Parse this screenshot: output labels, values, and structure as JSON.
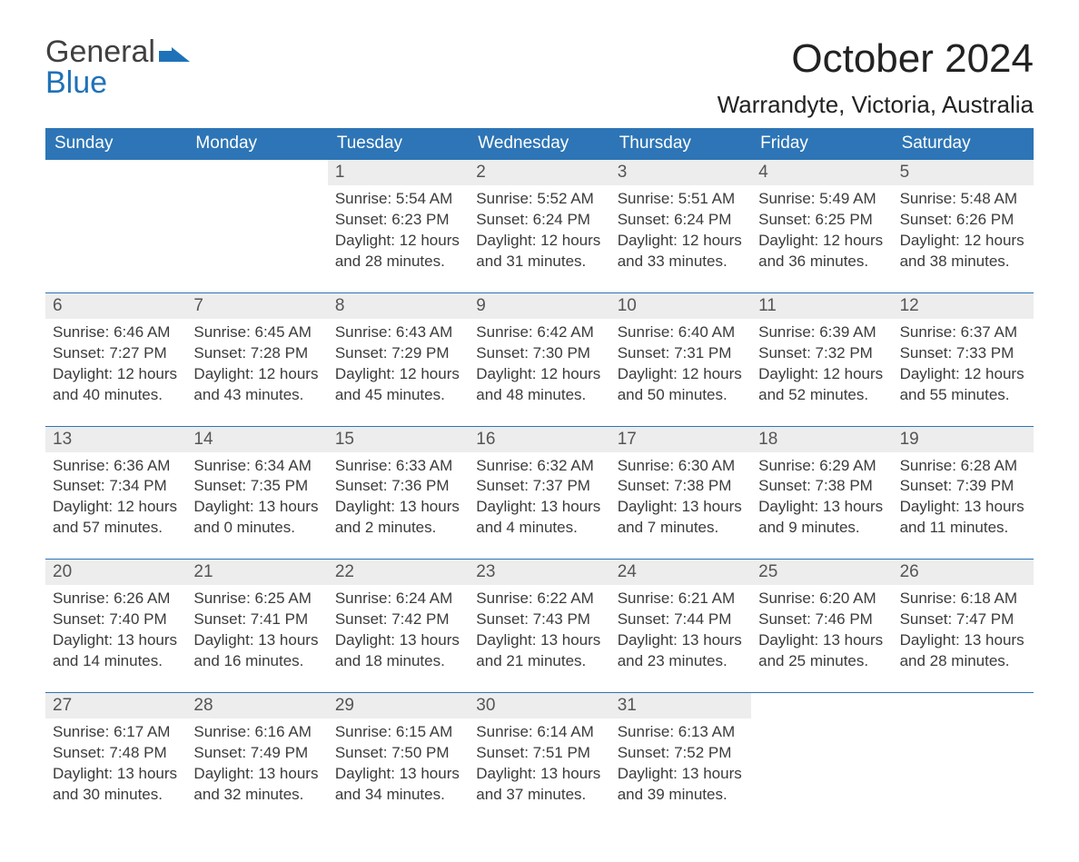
{
  "logo": {
    "word1": "General",
    "word2": "Blue"
  },
  "title": "October 2024",
  "location": "Warrandyte, Victoria, Australia",
  "colors": {
    "header_bg": "#2d75b6",
    "header_text": "#ffffff",
    "daynum_bg": "#ededed",
    "cell_border": "#2d75b6",
    "body_text": "#3b3b3b",
    "logo_blue": "#1f72b8",
    "page_bg": "#ffffff"
  },
  "layout": {
    "columns": 7,
    "rows": 5
  },
  "days_of_week": [
    "Sunday",
    "Monday",
    "Tuesday",
    "Wednesday",
    "Thursday",
    "Friday",
    "Saturday"
  ],
  "weeks": [
    [
      {
        "empty": true
      },
      {
        "empty": true
      },
      {
        "day": "1",
        "sunrise": "Sunrise: 5:54 AM",
        "sunset": "Sunset: 6:23 PM",
        "daylight": "Daylight: 12 hours and 28 minutes."
      },
      {
        "day": "2",
        "sunrise": "Sunrise: 5:52 AM",
        "sunset": "Sunset: 6:24 PM",
        "daylight": "Daylight: 12 hours and 31 minutes."
      },
      {
        "day": "3",
        "sunrise": "Sunrise: 5:51 AM",
        "sunset": "Sunset: 6:24 PM",
        "daylight": "Daylight: 12 hours and 33 minutes."
      },
      {
        "day": "4",
        "sunrise": "Sunrise: 5:49 AM",
        "sunset": "Sunset: 6:25 PM",
        "daylight": "Daylight: 12 hours and 36 minutes."
      },
      {
        "day": "5",
        "sunrise": "Sunrise: 5:48 AM",
        "sunset": "Sunset: 6:26 PM",
        "daylight": "Daylight: 12 hours and 38 minutes."
      }
    ],
    [
      {
        "day": "6",
        "sunrise": "Sunrise: 6:46 AM",
        "sunset": "Sunset: 7:27 PM",
        "daylight": "Daylight: 12 hours and 40 minutes."
      },
      {
        "day": "7",
        "sunrise": "Sunrise: 6:45 AM",
        "sunset": "Sunset: 7:28 PM",
        "daylight": "Daylight: 12 hours and 43 minutes."
      },
      {
        "day": "8",
        "sunrise": "Sunrise: 6:43 AM",
        "sunset": "Sunset: 7:29 PM",
        "daylight": "Daylight: 12 hours and 45 minutes."
      },
      {
        "day": "9",
        "sunrise": "Sunrise: 6:42 AM",
        "sunset": "Sunset: 7:30 PM",
        "daylight": "Daylight: 12 hours and 48 minutes."
      },
      {
        "day": "10",
        "sunrise": "Sunrise: 6:40 AM",
        "sunset": "Sunset: 7:31 PM",
        "daylight": "Daylight: 12 hours and 50 minutes."
      },
      {
        "day": "11",
        "sunrise": "Sunrise: 6:39 AM",
        "sunset": "Sunset: 7:32 PM",
        "daylight": "Daylight: 12 hours and 52 minutes."
      },
      {
        "day": "12",
        "sunrise": "Sunrise: 6:37 AM",
        "sunset": "Sunset: 7:33 PM",
        "daylight": "Daylight: 12 hours and 55 minutes."
      }
    ],
    [
      {
        "day": "13",
        "sunrise": "Sunrise: 6:36 AM",
        "sunset": "Sunset: 7:34 PM",
        "daylight": "Daylight: 12 hours and 57 minutes."
      },
      {
        "day": "14",
        "sunrise": "Sunrise: 6:34 AM",
        "sunset": "Sunset: 7:35 PM",
        "daylight": "Daylight: 13 hours and 0 minutes."
      },
      {
        "day": "15",
        "sunrise": "Sunrise: 6:33 AM",
        "sunset": "Sunset: 7:36 PM",
        "daylight": "Daylight: 13 hours and 2 minutes."
      },
      {
        "day": "16",
        "sunrise": "Sunrise: 6:32 AM",
        "sunset": "Sunset: 7:37 PM",
        "daylight": "Daylight: 13 hours and 4 minutes."
      },
      {
        "day": "17",
        "sunrise": "Sunrise: 6:30 AM",
        "sunset": "Sunset: 7:38 PM",
        "daylight": "Daylight: 13 hours and 7 minutes."
      },
      {
        "day": "18",
        "sunrise": "Sunrise: 6:29 AM",
        "sunset": "Sunset: 7:38 PM",
        "daylight": "Daylight: 13 hours and 9 minutes."
      },
      {
        "day": "19",
        "sunrise": "Sunrise: 6:28 AM",
        "sunset": "Sunset: 7:39 PM",
        "daylight": "Daylight: 13 hours and 11 minutes."
      }
    ],
    [
      {
        "day": "20",
        "sunrise": "Sunrise: 6:26 AM",
        "sunset": "Sunset: 7:40 PM",
        "daylight": "Daylight: 13 hours and 14 minutes."
      },
      {
        "day": "21",
        "sunrise": "Sunrise: 6:25 AM",
        "sunset": "Sunset: 7:41 PM",
        "daylight": "Daylight: 13 hours and 16 minutes."
      },
      {
        "day": "22",
        "sunrise": "Sunrise: 6:24 AM",
        "sunset": "Sunset: 7:42 PM",
        "daylight": "Daylight: 13 hours and 18 minutes."
      },
      {
        "day": "23",
        "sunrise": "Sunrise: 6:22 AM",
        "sunset": "Sunset: 7:43 PM",
        "daylight": "Daylight: 13 hours and 21 minutes."
      },
      {
        "day": "24",
        "sunrise": "Sunrise: 6:21 AM",
        "sunset": "Sunset: 7:44 PM",
        "daylight": "Daylight: 13 hours and 23 minutes."
      },
      {
        "day": "25",
        "sunrise": "Sunrise: 6:20 AM",
        "sunset": "Sunset: 7:46 PM",
        "daylight": "Daylight: 13 hours and 25 minutes."
      },
      {
        "day": "26",
        "sunrise": "Sunrise: 6:18 AM",
        "sunset": "Sunset: 7:47 PM",
        "daylight": "Daylight: 13 hours and 28 minutes."
      }
    ],
    [
      {
        "day": "27",
        "sunrise": "Sunrise: 6:17 AM",
        "sunset": "Sunset: 7:48 PM",
        "daylight": "Daylight: 13 hours and 30 minutes."
      },
      {
        "day": "28",
        "sunrise": "Sunrise: 6:16 AM",
        "sunset": "Sunset: 7:49 PM",
        "daylight": "Daylight: 13 hours and 32 minutes."
      },
      {
        "day": "29",
        "sunrise": "Sunrise: 6:15 AM",
        "sunset": "Sunset: 7:50 PM",
        "daylight": "Daylight: 13 hours and 34 minutes."
      },
      {
        "day": "30",
        "sunrise": "Sunrise: 6:14 AM",
        "sunset": "Sunset: 7:51 PM",
        "daylight": "Daylight: 13 hours and 37 minutes."
      },
      {
        "day": "31",
        "sunrise": "Sunrise: 6:13 AM",
        "sunset": "Sunset: 7:52 PM",
        "daylight": "Daylight: 13 hours and 39 minutes."
      },
      {
        "empty": true
      },
      {
        "empty": true
      }
    ]
  ]
}
